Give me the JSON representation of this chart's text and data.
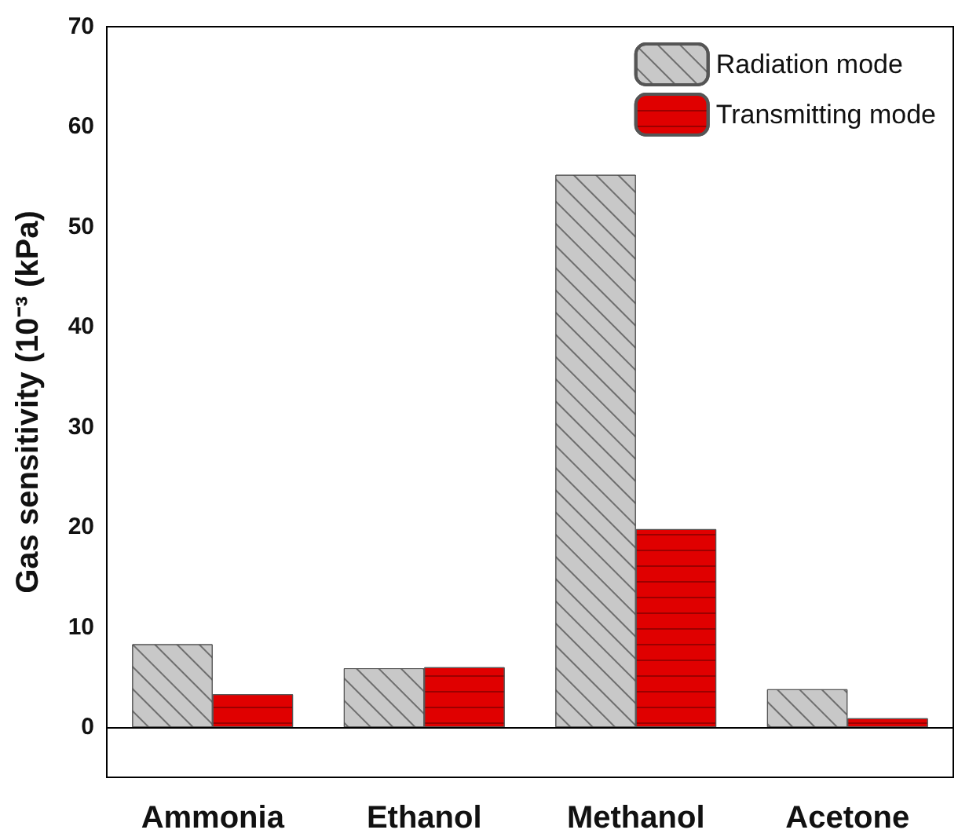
{
  "chart_data": {
    "type": "bar",
    "ylabel": "Gas sensitivity (10⁻³ (kPa)",
    "categories": [
      "Ammonia",
      "Ethanol",
      "Methanol",
      "Acetone"
    ],
    "series": [
      {
        "name": "Radiation mode",
        "color": "#c8c8c8",
        "values": [
          8.3,
          5.9,
          55.2,
          3.8
        ]
      },
      {
        "name": "Transmitting mode",
        "color": "#e00000",
        "values": [
          3.3,
          6.0,
          19.8,
          0.9
        ]
      }
    ],
    "ylim": [
      -5,
      70
    ],
    "yticks": [
      0,
      10,
      20,
      30,
      40,
      50,
      60,
      70
    ],
    "ref_lines": [
      {
        "axis": "y",
        "value": 0,
        "color": "#000000"
      }
    ],
    "grid": false,
    "legend": "top right"
  }
}
